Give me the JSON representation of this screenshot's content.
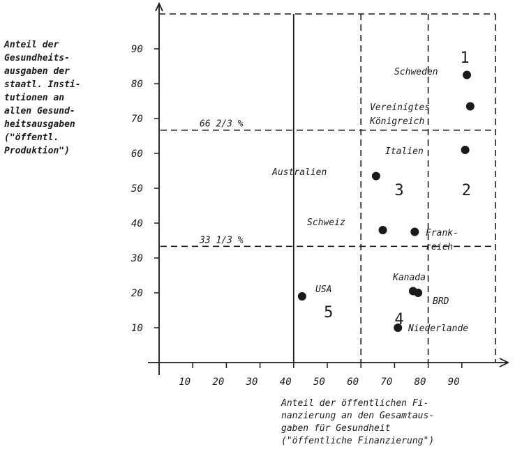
{
  "chart_data": {
    "type": "scatter",
    "ylabel": [
      "Anteil der",
      "Gesundheits-",
      "ausgaben der",
      "staatl. Insti-",
      "tutionen an",
      "allen Gesund-",
      "heitsausgaben",
      "(\"öffentl.",
      "Produktion\")"
    ],
    "xlabel": [
      "Anteil der öffentlichen Fi-",
      "nanzierung an den Gesamtaus-",
      "gaben für Gesundheit",
      "(\"öffentliche Finanzierung\")"
    ],
    "xlim": [
      0,
      100
    ],
    "ylim": [
      0,
      100
    ],
    "xticks": [
      10,
      20,
      30,
      40,
      50,
      60,
      70,
      80,
      90
    ],
    "yticks": [
      10,
      20,
      30,
      40,
      50,
      60,
      70,
      80,
      90
    ],
    "points": [
      {
        "label": "Schweden",
        "x": 91.5,
        "y": 82.5
      },
      {
        "label": "Vereinigtes Königreich",
        "x": 92.5,
        "y": 73.5
      },
      {
        "label": "Italien",
        "x": 91,
        "y": 61
      },
      {
        "label": "Australien",
        "x": 64.5,
        "y": 53.5
      },
      {
        "label": "Schweiz",
        "x": 66.5,
        "y": 38
      },
      {
        "label": "Frankreich",
        "x": 76,
        "y": 37.5
      },
      {
        "label": "USA",
        "x": 42.5,
        "y": 19
      },
      {
        "label": "Kanada",
        "x": 75.5,
        "y": 20.5
      },
      {
        "label": "BRD",
        "x": 77,
        "y": 20
      },
      {
        "label": "Niederlande",
        "x": 71,
        "y": 10
      }
    ],
    "threshold_labels": [
      {
        "text": "66 2/3 %",
        "y": 66.67
      },
      {
        "text": "33 1/3 %",
        "y": 33.33
      }
    ],
    "region_labels": [
      {
        "text": "1",
        "x": 89.5,
        "y": 86
      },
      {
        "text": "2",
        "x": 90,
        "y": 48
      },
      {
        "text": "3",
        "x": 70,
        "y": 48
      },
      {
        "text": "4",
        "x": 70,
        "y": 11
      },
      {
        "text": "5",
        "x": 49,
        "y": 13
      }
    ]
  }
}
